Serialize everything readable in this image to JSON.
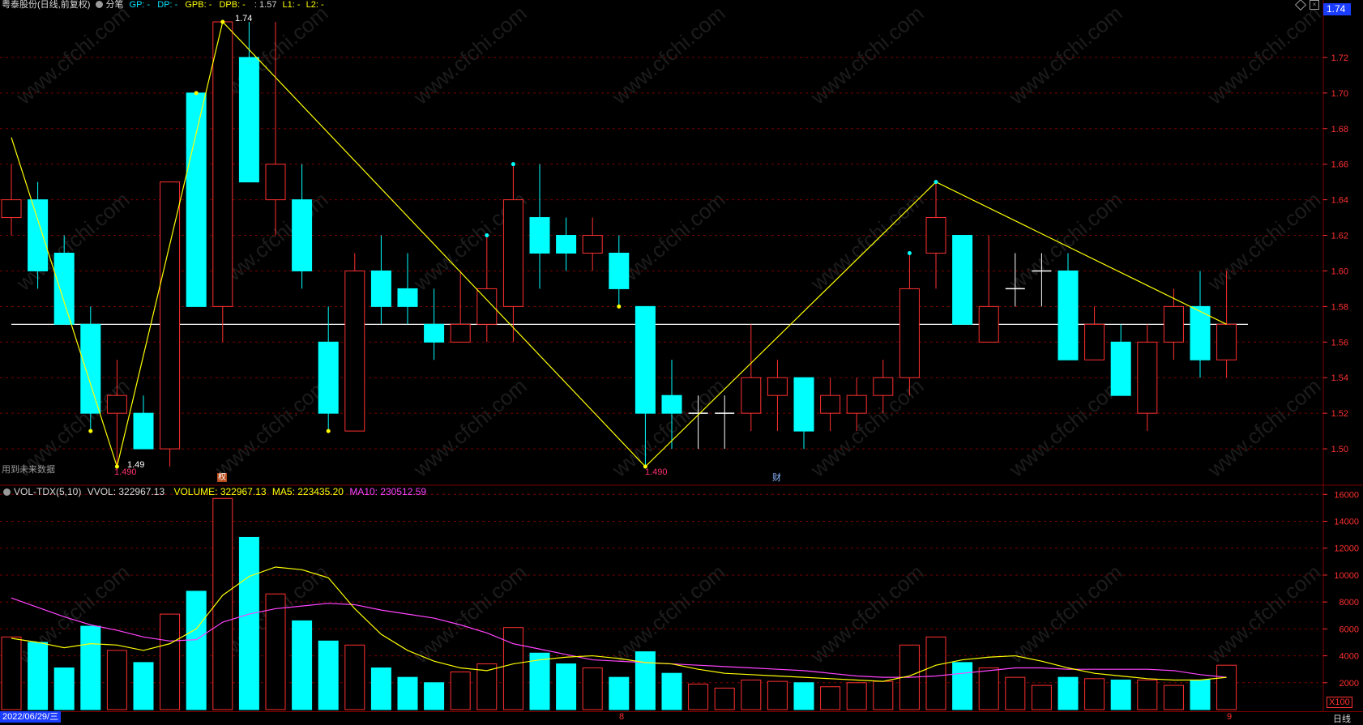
{
  "header": {
    "stock": "粤泰股份(日线,前复权)",
    "mode_label": "分笔",
    "gp": "GP: -",
    "dp": "DP: -",
    "gpb": "GPB: -",
    "dpb": "DPB: -",
    "extra": ": 1.57",
    "l1": "L1: -",
    "l2": "L2: -"
  },
  "price_panel": {
    "current_price": "1.74",
    "note_left": "用到未来数据",
    "marker_cai": "财",
    "marker_quan": "权",
    "high_label": "1.74",
    "low_label_1": "1.49",
    "low_label_1b": "1.490",
    "low_label_2": "1.490"
  },
  "volume_panel": {
    "title": "VOL-TDX(5,10)",
    "vvol": "VVOL: 322967.13",
    "volume": "VOLUME: 322967.13",
    "ma5": "MA5: 223435.20",
    "ma10": "MA10: 230512.59",
    "unit": "X100"
  },
  "footer": {
    "start_date": "2022/06/29/三",
    "month_8": "8",
    "month_9": "9",
    "period": "日线"
  },
  "watermark": "www.cfchi.com",
  "colors": {
    "up": "#ff3030",
    "down": "#00ffff",
    "grid": "#7a0000",
    "zigzag": "#ffff00",
    "ma5": "#ffff00",
    "ma10": "#ff44ff",
    "axis_text": "#ff3030"
  },
  "chart_data": [
    {
      "type": "candlestick",
      "yticks": [
        1.5,
        1.52,
        1.54,
        1.56,
        1.58,
        1.6,
        1.62,
        1.64,
        1.66,
        1.68,
        1.7,
        1.72
      ],
      "ylim": [
        1.48,
        1.745
      ],
      "reference_line": 1.57,
      "candles": [
        {
          "o": 1.63,
          "c": 1.64,
          "h": 1.66,
          "l": 1.62
        },
        {
          "o": 1.64,
          "c": 1.6,
          "h": 1.65,
          "l": 1.59
        },
        {
          "o": 1.61,
          "c": 1.57,
          "h": 1.62,
          "l": 1.57
        },
        {
          "o": 1.57,
          "c": 1.52,
          "h": 1.58,
          "l": 1.51
        },
        {
          "o": 1.52,
          "c": 1.53,
          "h": 1.55,
          "l": 1.49
        },
        {
          "o": 1.52,
          "c": 1.5,
          "h": 1.53,
          "l": 1.5
        },
        {
          "o": 1.5,
          "c": 1.65,
          "h": 1.65,
          "l": 1.49
        },
        {
          "o": 1.7,
          "c": 1.58,
          "h": 1.7,
          "l": 1.58
        },
        {
          "o": 1.58,
          "c": 1.74,
          "h": 1.74,
          "l": 1.56
        },
        {
          "o": 1.72,
          "c": 1.65,
          "h": 1.74,
          "l": 1.65
        },
        {
          "o": 1.64,
          "c": 1.66,
          "h": 1.74,
          "l": 1.62
        },
        {
          "o": 1.64,
          "c": 1.6,
          "h": 1.66,
          "l": 1.59
        },
        {
          "o": 1.56,
          "c": 1.52,
          "h": 1.58,
          "l": 1.51
        },
        {
          "o": 1.51,
          "c": 1.6,
          "h": 1.61,
          "l": 1.51
        },
        {
          "o": 1.6,
          "c": 1.58,
          "h": 1.62,
          "l": 1.57
        },
        {
          "o": 1.59,
          "c": 1.58,
          "h": 1.61,
          "l": 1.57
        },
        {
          "o": 1.57,
          "c": 1.56,
          "h": 1.59,
          "l": 1.55
        },
        {
          "o": 1.56,
          "c": 1.57,
          "h": 1.6,
          "l": 1.56
        },
        {
          "o": 1.57,
          "c": 1.59,
          "h": 1.62,
          "l": 1.56
        },
        {
          "o": 1.58,
          "c": 1.64,
          "h": 1.66,
          "l": 1.56
        },
        {
          "o": 1.63,
          "c": 1.61,
          "h": 1.66,
          "l": 1.59
        },
        {
          "o": 1.62,
          "c": 1.61,
          "h": 1.63,
          "l": 1.6
        },
        {
          "o": 1.61,
          "c": 1.62,
          "h": 1.63,
          "l": 1.6
        },
        {
          "o": 1.61,
          "c": 1.59,
          "h": 1.62,
          "l": 1.58
        },
        {
          "o": 1.58,
          "c": 1.52,
          "h": 1.58,
          "l": 1.49
        },
        {
          "o": 1.53,
          "c": 1.52,
          "h": 1.55,
          "l": 1.5
        },
        {
          "o": 1.52,
          "c": 1.52,
          "h": 1.53,
          "l": 1.5
        },
        {
          "o": 1.52,
          "c": 1.52,
          "h": 1.53,
          "l": 1.5
        },
        {
          "o": 1.52,
          "c": 1.54,
          "h": 1.57,
          "l": 1.51
        },
        {
          "o": 1.53,
          "c": 1.54,
          "h": 1.55,
          "l": 1.51
        },
        {
          "o": 1.54,
          "c": 1.51,
          "h": 1.54,
          "l": 1.5
        },
        {
          "o": 1.52,
          "c": 1.53,
          "h": 1.54,
          "l": 1.51
        },
        {
          "o": 1.52,
          "c": 1.53,
          "h": 1.54,
          "l": 1.51
        },
        {
          "o": 1.53,
          "c": 1.54,
          "h": 1.55,
          "l": 1.52
        },
        {
          "o": 1.54,
          "c": 1.59,
          "h": 1.61,
          "l": 1.53
        },
        {
          "o": 1.61,
          "c": 1.63,
          "h": 1.65,
          "l": 1.59
        },
        {
          "o": 1.62,
          "c": 1.57,
          "h": 1.62,
          "l": 1.57
        },
        {
          "o": 1.56,
          "c": 1.58,
          "h": 1.62,
          "l": 1.56
        },
        {
          "o": 1.59,
          "c": 1.59,
          "h": 1.61,
          "l": 1.58
        },
        {
          "o": 1.6,
          "c": 1.6,
          "h": 1.61,
          "l": 1.58
        },
        {
          "o": 1.6,
          "c": 1.55,
          "h": 1.61,
          "l": 1.55
        },
        {
          "o": 1.55,
          "c": 1.57,
          "h": 1.58,
          "l": 1.55
        },
        {
          "o": 1.56,
          "c": 1.53,
          "h": 1.57,
          "l": 1.53
        },
        {
          "o": 1.52,
          "c": 1.56,
          "h": 1.57,
          "l": 1.51
        },
        {
          "o": 1.56,
          "c": 1.58,
          "h": 1.59,
          "l": 1.55
        },
        {
          "o": 1.58,
          "c": 1.55,
          "h": 1.6,
          "l": 1.54
        },
        {
          "o": 1.55,
          "c": 1.57,
          "h": 1.6,
          "l": 1.54
        }
      ],
      "zigzag": [
        {
          "i": 0,
          "v": 1.675
        },
        {
          "i": 4,
          "v": 1.49
        },
        {
          "i": 8,
          "v": 1.74
        },
        {
          "i": 24,
          "v": 1.49
        },
        {
          "i": 35,
          "v": 1.65
        },
        {
          "i": 46,
          "v": 1.57
        }
      ],
      "signal_dots": [
        {
          "i": 3,
          "v": 1.51
        },
        {
          "i": 4,
          "v": 1.49
        },
        {
          "i": 7,
          "v": 1.7
        },
        {
          "i": 8,
          "v": 1.74
        },
        {
          "i": 12,
          "v": 1.51
        },
        {
          "i": 18,
          "v": 1.62
        },
        {
          "i": 19,
          "v": 1.66
        },
        {
          "i": 23,
          "v": 1.58
        },
        {
          "i": 24,
          "v": 1.49
        },
        {
          "i": 34,
          "v": 1.61
        },
        {
          "i": 35,
          "v": 1.65
        }
      ]
    },
    {
      "type": "bar",
      "title": "VOL-TDX(5,10)",
      "unit": "X100",
      "yticks": [
        2000,
        4000,
        6000,
        8000,
        10000,
        12000,
        14000,
        16000
      ],
      "ylim": [
        0,
        16500
      ],
      "volumes": [
        5400,
        5000,
        3100,
        6200,
        4400,
        3500,
        7100,
        8800,
        15700,
        12800,
        8600,
        6600,
        5100,
        4800,
        3100,
        2400,
        2000,
        2800,
        3400,
        6100,
        4200,
        3400,
        3100,
        2400,
        4300,
        2700,
        1900,
        1600,
        2200,
        2100,
        2000,
        1700,
        2000,
        2100,
        4800,
        5400,
        3500,
        3100,
        2400,
        1800,
        2400,
        2300,
        2200,
        2200,
        1800,
        2200,
        3300
      ],
      "ma5": [
        5300,
        5000,
        4600,
        4900,
        4800,
        4400,
        4900,
        6000,
        8500,
        9900,
        10600,
        10400,
        9800,
        7500,
        5600,
        4400,
        3600,
        3100,
        2900,
        3400,
        3700,
        3900,
        4000,
        3800,
        3500,
        3400,
        3000,
        2700,
        2600,
        2500,
        2400,
        2300,
        2200,
        2100,
        2500,
        3300,
        3700,
        3900,
        4000,
        3600,
        3100,
        2700,
        2500,
        2300,
        2200,
        2200,
        2400
      ],
      "ma10": [
        8300,
        7600,
        6900,
        6300,
        5900,
        5400,
        5100,
        5200,
        6500,
        7100,
        7500,
        7700,
        7900,
        7800,
        7400,
        7100,
        6800,
        6300,
        5700,
        4900,
        4500,
        4100,
        3700,
        3600,
        3500,
        3400,
        3300,
        3200,
        3100,
        3000,
        2900,
        2700,
        2500,
        2400,
        2400,
        2500,
        2700,
        2900,
        3100,
        3100,
        3000,
        3000,
        3000,
        3000,
        2900,
        2600,
        2400
      ]
    }
  ]
}
